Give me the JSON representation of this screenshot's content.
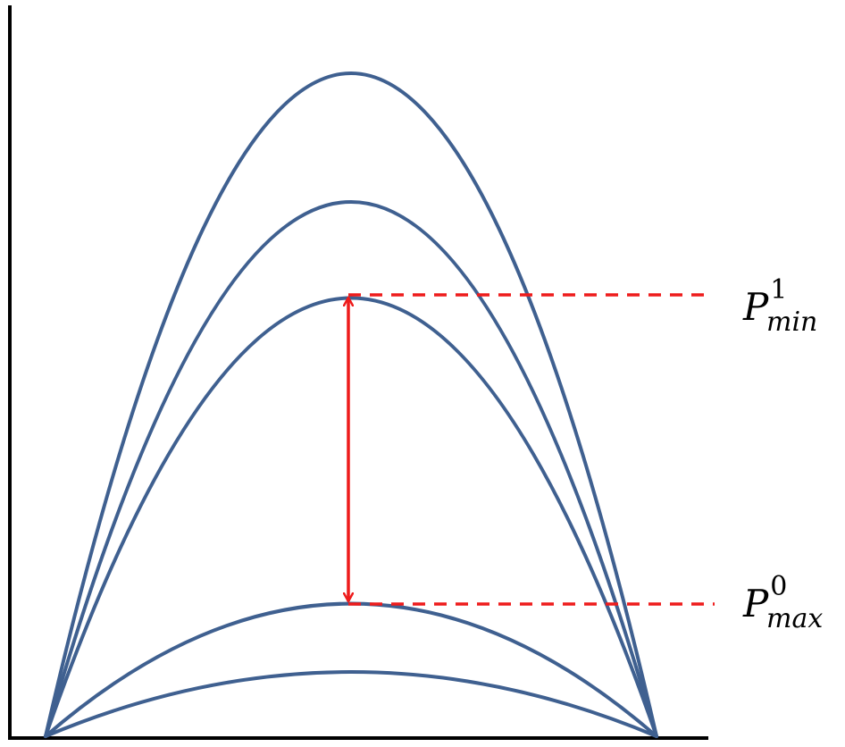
{
  "colors": {
    "curve": "#3F6090",
    "threshold": "#EE1C1C",
    "axis": "#000000"
  },
  "curves": [
    {
      "id": "curve-1",
      "peak_level": 1.0
    },
    {
      "id": "curve-2",
      "peak_level": 0.806
    },
    {
      "id": "curve-3",
      "peak_level": 0.661
    },
    {
      "id": "curve-4",
      "peak_level": 0.2
    },
    {
      "id": "curve-5",
      "peak_level": 0.097
    }
  ],
  "thresholds": [
    {
      "id": "p-min-1",
      "base": "P",
      "sub": "min",
      "sup": "1",
      "curve_index": 2
    },
    {
      "id": "p-max-0",
      "base": "P",
      "sub": "max",
      "sup": "0",
      "curve_index": 3
    }
  ]
}
